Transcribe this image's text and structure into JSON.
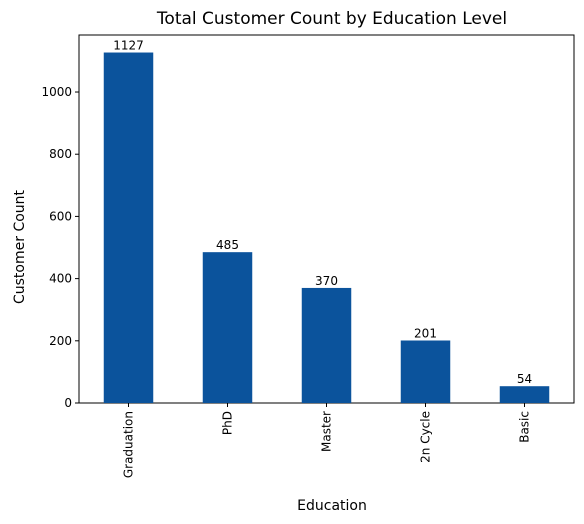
{
  "chart_data": {
    "type": "bar",
    "title": "Total Customer Count by Education Level",
    "xlabel": "Education",
    "ylabel": "Customer Count",
    "categories": [
      "Graduation",
      "PhD",
      "Master",
      "2n Cycle",
      "Basic"
    ],
    "values": [
      1127,
      485,
      370,
      201,
      54
    ],
    "value_labels": [
      "1127",
      "485",
      "370",
      "201",
      "54"
    ],
    "yticks": [
      0,
      200,
      400,
      600,
      800,
      1000
    ],
    "ytick_labels": [
      "0",
      "200",
      "400",
      "600",
      "800",
      "1000"
    ],
    "ylim": [
      0,
      1183.35
    ],
    "bar_color": "#0b539c",
    "grid": false,
    "legend": "none"
  }
}
